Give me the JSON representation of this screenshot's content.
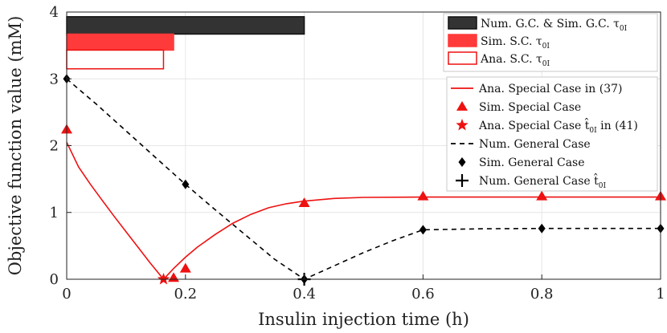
{
  "chart_data": {
    "type": "line",
    "xlabel": "Insulin injection time (h)",
    "ylabel": "Objective function value (mM)",
    "xlim": [
      0,
      1
    ],
    "ylim": [
      0,
      4
    ],
    "xticks": [
      0,
      0.2,
      0.4,
      0.6,
      0.8,
      1
    ],
    "yticks": [
      0,
      1,
      2,
      3,
      4
    ],
    "xtick_labels": [
      "0",
      "0.2",
      "0.4",
      "0.6",
      "0.8",
      "1"
    ],
    "ytick_labels": [
      "0",
      "1",
      "2",
      "3",
      "4"
    ],
    "grid": true,
    "series": [
      {
        "name": "Ana. Special Case in (37)",
        "style": "line",
        "color": "#ee1111",
        "x": [
          0,
          0.02,
          0.04,
          0.06,
          0.08,
          0.1,
          0.12,
          0.14,
          0.163,
          0.18,
          0.2,
          0.22,
          0.25,
          0.28,
          0.31,
          0.34,
          0.37,
          0.4,
          0.45,
          0.5,
          0.6,
          0.7,
          0.8,
          0.9,
          1.0
        ],
        "y": [
          2.05,
          1.68,
          1.42,
          1.18,
          0.94,
          0.71,
          0.48,
          0.25,
          0.0,
          0.16,
          0.33,
          0.48,
          0.67,
          0.84,
          0.97,
          1.07,
          1.13,
          1.17,
          1.21,
          1.225,
          1.23,
          1.23,
          1.23,
          1.23,
          1.23
        ]
      },
      {
        "name": "Sim. Special Case",
        "style": "triangle",
        "color": "#ee1111",
        "x": [
          0,
          0.18,
          0.2,
          0.4,
          0.6,
          0.8,
          1.0
        ],
        "y": [
          2.24,
          0.02,
          0.16,
          1.14,
          1.24,
          1.24,
          1.24
        ]
      },
      {
        "name": "Ana. Special Case t̂0I in (41)",
        "style": "star",
        "color": "#ee1111",
        "x": [
          0.163
        ],
        "y": [
          0.0
        ]
      },
      {
        "name": "Num. General Case",
        "style": "dashed",
        "color": "#000000",
        "x": [
          0,
          0.05,
          0.1,
          0.15,
          0.2,
          0.25,
          0.3,
          0.35,
          0.4,
          0.45,
          0.5,
          0.55,
          0.6,
          0.7,
          0.8,
          0.9,
          1.0
        ],
        "y": [
          3.0,
          2.62,
          2.22,
          1.82,
          1.42,
          1.04,
          0.67,
          0.3,
          0.0,
          0.2,
          0.4,
          0.58,
          0.74,
          0.755,
          0.76,
          0.76,
          0.76
        ]
      },
      {
        "name": "Sim. General Case",
        "style": "diamond",
        "color": "#000000",
        "x": [
          0,
          0.2,
          0.4,
          0.6,
          0.8,
          1.0
        ],
        "y": [
          3.0,
          1.42,
          0.0,
          0.74,
          0.76,
          0.76
        ]
      },
      {
        "name": "Num. General Case t̂0I",
        "style": "plus",
        "color": "#000000",
        "x": [
          0.4
        ],
        "y": [
          0.0
        ]
      }
    ],
    "bars": [
      {
        "name": "Num. G.C. & Sim. G.C. τ0I",
        "x_start": 0,
        "x_end": 0.4,
        "y_low": 3.67,
        "y_high": 3.93,
        "fill": "#333333",
        "edge": "#111111"
      },
      {
        "name": "Sim. S.C. τ0I",
        "x_start": 0,
        "x_end": 0.18,
        "y_low": 3.43,
        "y_high": 3.67,
        "fill": "#ff3a3a",
        "edge": "#ff3a3a"
      },
      {
        "name": "Ana. S.C. τ0I",
        "x_start": 0,
        "x_end": 0.163,
        "y_low": 3.15,
        "y_high": 3.43,
        "fill": "#ffffff",
        "edge": "#ee1111"
      }
    ],
    "legend_top": [
      {
        "label": "Num. G.C. & Sim. G.C. τ",
        "sub": "0I",
        "fill": "#333333",
        "edge": "#111111"
      },
      {
        "label": "Sim. S.C. τ",
        "sub": "0I",
        "fill": "#ff3a3a",
        "edge": "#ff3a3a"
      },
      {
        "label": "Ana. S.C. τ",
        "sub": "0I",
        "fill": "#ffffff",
        "edge": "#ee1111"
      }
    ],
    "legend_lines": [
      {
        "label": "Ana. Special Case in (37)",
        "marker": "line",
        "color": "#ee1111"
      },
      {
        "label": "Sim. Special Case",
        "marker": "triangle",
        "color": "#ee1111"
      },
      {
        "label": "Ana. Special Case t̂",
        "sub": "0I",
        "suffix": " in (41)",
        "marker": "star",
        "color": "#ee1111"
      },
      {
        "label": "Num. General Case",
        "marker": "dashed",
        "color": "#000000"
      },
      {
        "label": "Sim. General Case",
        "marker": "diamond",
        "color": "#000000"
      },
      {
        "label": "Num. General Case t̂",
        "sub": "0I",
        "suffix": "",
        "marker": "plus",
        "color": "#000000"
      }
    ]
  }
}
